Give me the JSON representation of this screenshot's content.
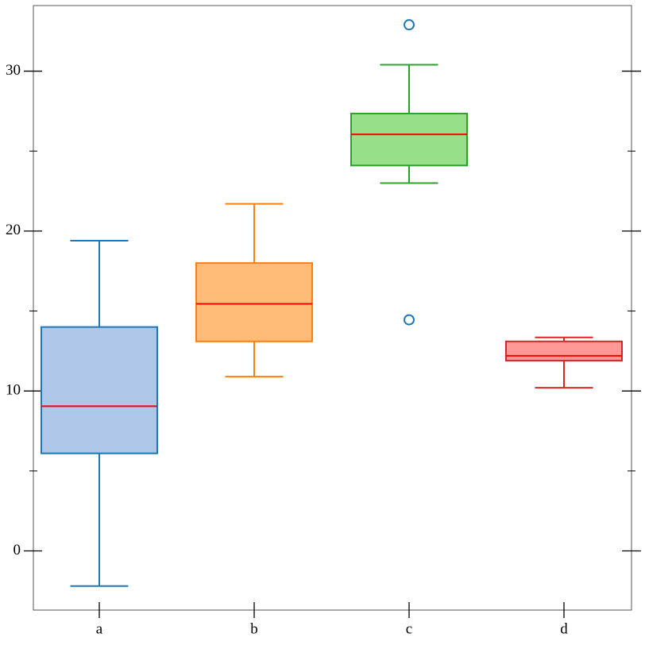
{
  "chart_data": {
    "type": "box",
    "categories": [
      "a",
      "b",
      "c",
      "d"
    ],
    "series": [
      {
        "name": "a",
        "color": "#1f77b4",
        "fill": "#aec7e8",
        "whislo": -2.2,
        "q1": 6.1,
        "median": 9.05,
        "q3": 14.0,
        "whishi": 19.4,
        "fliers": []
      },
      {
        "name": "b",
        "color": "#ff7f0e",
        "fill": "#ffbb78",
        "whislo": 10.9,
        "q1": 13.1,
        "median": 15.45,
        "q3": 18.0,
        "whishi": 21.7,
        "fliers": []
      },
      {
        "name": "c",
        "color": "#2ca02c",
        "fill": "#98df8a",
        "whislo": 23.0,
        "q1": 24.1,
        "median": 26.05,
        "q3": 27.35,
        "whishi": 30.4,
        "fliers": [
          32.9,
          14.45
        ]
      },
      {
        "name": "d",
        "color": "#d62728",
        "fill": "#ff9896",
        "whislo": 10.2,
        "q1": 11.9,
        "median": 12.2,
        "q3": 13.1,
        "whishi": 13.35,
        "fliers": []
      }
    ],
    "median_color": "#ff0000",
    "flier_color": "#1f77b4",
    "ylim": [
      -3.7,
      34.1
    ],
    "yticks": [
      0,
      10,
      20,
      30
    ],
    "yminorticks": [
      5,
      15,
      25
    ]
  }
}
